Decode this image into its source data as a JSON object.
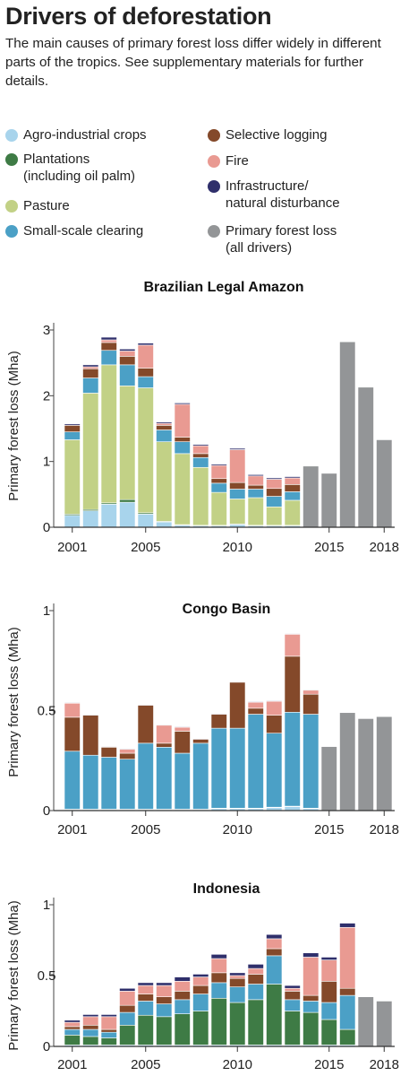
{
  "title": "Drivers of deforestation",
  "subtitle": "The main causes of primary forest loss differ widely in different parts of the tropics. See supplementary materials for further details.",
  "legend": [
    {
      "key": "agro",
      "label": "Agro-industrial crops",
      "color": "#a8d4ec"
    },
    {
      "key": "plant",
      "label": "Plantations\n(including oil palm)",
      "color": "#3e7b45"
    },
    {
      "key": "pasture",
      "label": "Pasture",
      "color": "#c2d186"
    },
    {
      "key": "small",
      "label": "Small-scale clearing",
      "color": "#4ba0c6"
    },
    {
      "key": "logging",
      "label": "Selective logging",
      "color": "#84492a"
    },
    {
      "key": "fire",
      "label": "Fire",
      "color": "#e99a92"
    },
    {
      "key": "infra",
      "label": "Infrastructure/\nnatural disturbance",
      "color": "#2f2f6b"
    },
    {
      "key": "total",
      "label": "Primary forest loss\n(all drivers)",
      "color": "#939597"
    }
  ],
  "chart_data": [
    {
      "type": "bar",
      "stacked": true,
      "title": "Brazilian Legal Amazon",
      "ylabel": "Primary forest  loss (Mha)",
      "ylim": [
        0,
        3
      ],
      "yticks": [
        0,
        1,
        2,
        3
      ],
      "x": [
        2001,
        2002,
        2003,
        2004,
        2005,
        2006,
        2007,
        2008,
        2009,
        2010,
        2011,
        2012,
        2013,
        2014,
        2015,
        2016,
        2017,
        2018
      ],
      "xticks": [
        2001,
        2005,
        2010,
        2015,
        2018
      ],
      "series": [
        {
          "key": "agro",
          "values": [
            0.18,
            0.25,
            0.35,
            0.38,
            0.2,
            0.08,
            0.03,
            0.02,
            0.02,
            0.04,
            0.02,
            0.02,
            0.02,
            null,
            null,
            null,
            null,
            null
          ]
        },
        {
          "key": "plant",
          "values": [
            0.02,
            0.02,
            0.02,
            0.04,
            0.02,
            0.01,
            0.01,
            0.01,
            0.01,
            0.01,
            0.01,
            0.01,
            0.01,
            null,
            null,
            null,
            null,
            null
          ]
        },
        {
          "key": "pasture",
          "values": [
            1.13,
            1.77,
            2.1,
            1.73,
            1.9,
            1.21,
            1.08,
            0.88,
            0.5,
            0.38,
            0.42,
            0.28,
            0.38,
            null,
            null,
            null,
            null,
            null
          ]
        },
        {
          "key": "small",
          "values": [
            0.12,
            0.23,
            0.22,
            0.32,
            0.17,
            0.18,
            0.18,
            0.15,
            0.14,
            0.15,
            0.13,
            0.16,
            0.13,
            null,
            null,
            null,
            null,
            null
          ]
        },
        {
          "key": "logging",
          "values": [
            0.1,
            0.14,
            0.12,
            0.13,
            0.13,
            0.07,
            0.07,
            0.06,
            0.07,
            0.1,
            0.06,
            0.12,
            0.11,
            null,
            null,
            null,
            null,
            null
          ]
        },
        {
          "key": "fire",
          "values": [
            0.0,
            0.03,
            0.04,
            0.08,
            0.35,
            0.03,
            0.5,
            0.12,
            0.2,
            0.5,
            0.14,
            0.14,
            0.1,
            null,
            null,
            null,
            null,
            null
          ]
        },
        {
          "key": "infra",
          "values": [
            0.02,
            0.03,
            0.04,
            0.03,
            0.03,
            0.02,
            0.02,
            0.02,
            0.02,
            0.02,
            0.02,
            0.02,
            0.02,
            null,
            null,
            null,
            null,
            null
          ]
        },
        {
          "key": "total",
          "values": [
            null,
            null,
            null,
            null,
            null,
            null,
            null,
            null,
            null,
            null,
            null,
            null,
            null,
            0.93,
            0.82,
            2.82,
            2.13,
            1.33
          ]
        }
      ]
    },
    {
      "type": "bar",
      "stacked": true,
      "title": "Congo Basin",
      "ylabel": "Primary forest loss (Mha)",
      "ylim": [
        0,
        1
      ],
      "yticks": [
        0,
        0.5,
        1
      ],
      "x": [
        2001,
        2002,
        2003,
        2004,
        2005,
        2006,
        2007,
        2008,
        2009,
        2010,
        2011,
        2012,
        2013,
        2014,
        2015,
        2016,
        2017,
        2018
      ],
      "xticks": [
        2001,
        2005,
        2010,
        2015,
        2018
      ],
      "series": [
        {
          "key": "agro",
          "values": [
            0.005,
            0.005,
            0.005,
            0.005,
            0.005,
            0.005,
            0.005,
            0.005,
            0.01,
            0.01,
            0.01,
            0.015,
            0.02,
            0.01,
            null,
            null,
            null,
            null
          ]
        },
        {
          "key": "plant",
          "values": [
            0.002,
            0.002,
            0.002,
            0.002,
            0.002,
            0.002,
            0.002,
            0.002,
            0.002,
            0.002,
            0.002,
            0.002,
            0.002,
            0.002,
            null,
            null,
            null,
            null
          ]
        },
        {
          "key": "pasture",
          "values": [
            0,
            0,
            0,
            0,
            0,
            0,
            0,
            0,
            0,
            0,
            0,
            0,
            0,
            0,
            null,
            null,
            null,
            null
          ]
        },
        {
          "key": "small",
          "values": [
            0.29,
            0.27,
            0.26,
            0.25,
            0.33,
            0.31,
            0.28,
            0.33,
            0.4,
            0.4,
            0.47,
            0.37,
            0.47,
            0.47,
            null,
            null,
            null,
            null
          ]
        },
        {
          "key": "logging",
          "values": [
            0.17,
            0.2,
            0.05,
            0.03,
            0.19,
            0.02,
            0.11,
            0.02,
            0.07,
            0.23,
            0.03,
            0.09,
            0.28,
            0.1,
            null,
            null,
            null,
            null
          ]
        },
        {
          "key": "fire",
          "values": [
            0.07,
            0.0,
            0.0,
            0.02,
            0.0,
            0.09,
            0.02,
            0.0,
            0.0,
            0.0,
            0.03,
            0.07,
            0.11,
            0.02,
            null,
            null,
            null,
            null
          ]
        },
        {
          "key": "infra",
          "values": [
            0.003,
            0.003,
            0.003,
            0.003,
            0.003,
            0.003,
            0.003,
            0.003,
            0.003,
            0.003,
            0.003,
            0.003,
            0.003,
            0.003,
            null,
            null,
            null,
            null
          ]
        },
        {
          "key": "total",
          "values": [
            null,
            null,
            null,
            null,
            null,
            null,
            null,
            null,
            null,
            null,
            null,
            null,
            null,
            null,
            0.32,
            0.49,
            0.46,
            0.47
          ]
        }
      ]
    },
    {
      "type": "bar",
      "stacked": true,
      "title": "Indonesia",
      "ylabel": "Primary forest loss (Mha)",
      "ylim": [
        0,
        1
      ],
      "yticks": [
        0,
        0.5,
        1
      ],
      "x": [
        2001,
        2002,
        2003,
        2004,
        2005,
        2006,
        2007,
        2008,
        2009,
        2010,
        2011,
        2012,
        2013,
        2014,
        2015,
        2016,
        2017,
        2018
      ],
      "xticks": [
        2001,
        2005,
        2010,
        2015,
        2018
      ],
      "series": [
        {
          "key": "agro",
          "values": [
            0.01,
            0.01,
            0.01,
            0.01,
            0.01,
            0.01,
            0.01,
            0.01,
            0.01,
            0.01,
            0.01,
            0.01,
            0.01,
            0.01,
            0.01,
            0.01,
            null,
            null
          ]
        },
        {
          "key": "plant",
          "values": [
            0.07,
            0.06,
            0.05,
            0.14,
            0.21,
            0.2,
            0.22,
            0.24,
            0.33,
            0.3,
            0.32,
            0.43,
            0.24,
            0.23,
            0.18,
            0.11,
            null,
            null
          ]
        },
        {
          "key": "pasture",
          "values": [
            0,
            0,
            0,
            0,
            0,
            0,
            0,
            0,
            0,
            0,
            0,
            0,
            0,
            0,
            0,
            0,
            null,
            null
          ]
        },
        {
          "key": "small",
          "values": [
            0.04,
            0.05,
            0.04,
            0.09,
            0.1,
            0.09,
            0.1,
            0.12,
            0.11,
            0.11,
            0.11,
            0.2,
            0.08,
            0.08,
            0.12,
            0.24,
            null,
            null
          ]
        },
        {
          "key": "logging",
          "values": [
            0.02,
            0.03,
            0.02,
            0.05,
            0.05,
            0.05,
            0.06,
            0.06,
            0.07,
            0.06,
            0.07,
            0.05,
            0.06,
            0.04,
            0.15,
            0.05,
            null,
            null
          ]
        },
        {
          "key": "fire",
          "values": [
            0.03,
            0.06,
            0.09,
            0.1,
            0.06,
            0.08,
            0.07,
            0.06,
            0.1,
            0.02,
            0.04,
            0.07,
            0.02,
            0.27,
            0.15,
            0.43,
            null,
            null
          ]
        },
        {
          "key": "infra",
          "values": [
            0.015,
            0.015,
            0.015,
            0.02,
            0.02,
            0.02,
            0.03,
            0.02,
            0.03,
            0.02,
            0.03,
            0.03,
            0.02,
            0.03,
            0.02,
            0.03,
            null,
            null
          ]
        },
        {
          "key": "total",
          "values": [
            null,
            null,
            null,
            null,
            null,
            null,
            null,
            null,
            null,
            null,
            null,
            null,
            null,
            null,
            null,
            null,
            0.35,
            0.32
          ]
        }
      ]
    }
  ]
}
